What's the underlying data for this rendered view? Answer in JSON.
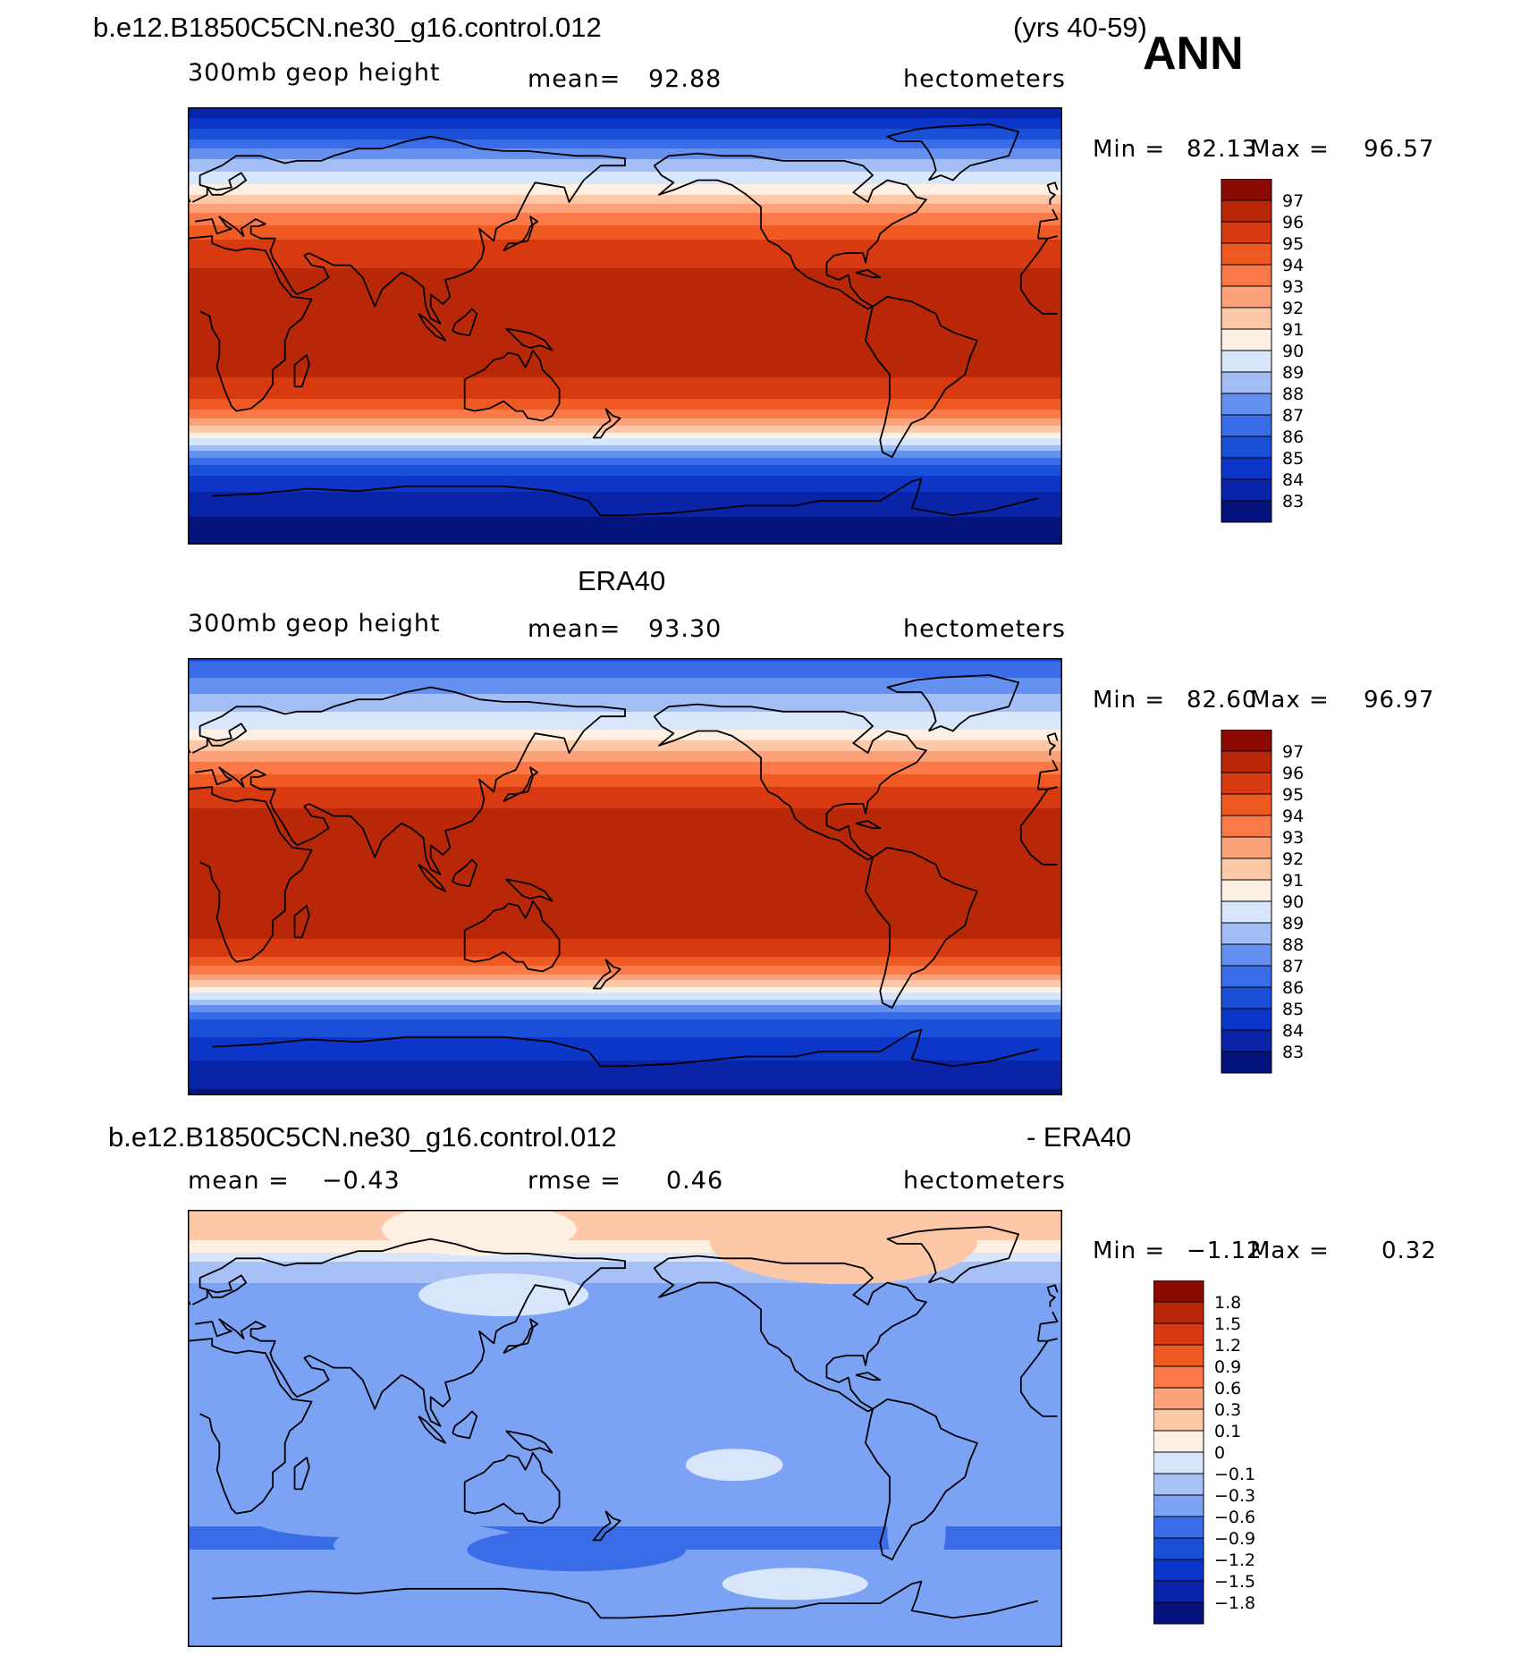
{
  "header": {
    "case_name": "b.e12.B1850C5CN.ne30_g16.control.012",
    "years": "(yrs 40-59)",
    "season": "ANN"
  },
  "colors": {
    "abs_palette": [
      "#05137c",
      "#0a24a8",
      "#0c36c8",
      "#1a4fd8",
      "#3a6ce8",
      "#6490f0",
      "#a3bef5",
      "#d8e6fb",
      "#fdf0e2",
      "#fcc8a8",
      "#fba27a",
      "#f97a48",
      "#ee5a22",
      "#d73a10",
      "#b82808",
      "#8c0a04"
    ],
    "diff_palette": [
      "#05137c",
      "#0a24a8",
      "#0c36c8",
      "#1a4fd8",
      "#3a6ce8",
      "#7ca2f4",
      "#a7c0f6",
      "#d8e6fb",
      "#fdf0e2",
      "#fcc8a8",
      "#fba27a",
      "#f97a48",
      "#ee5a22",
      "#d73a10",
      "#b82808",
      "#8c0a04"
    ],
    "coast": "#000000"
  },
  "chart_data": [
    {
      "type": "heatmap",
      "panel": "model",
      "title": "b.e12.B1850C5CN.ne30_g16.control.012",
      "variable": "300mb geop height",
      "mean_label": "mean=",
      "mean": "92.88",
      "units": "hectometers",
      "min_label": "Min =",
      "min": "82.13",
      "max_label": "Max =",
      "max": "96.57",
      "colorbar_levels": [
        "97",
        "96",
        "95",
        "94",
        "93",
        "92",
        "91",
        "90",
        "89",
        "88",
        "87",
        "86",
        "85",
        "84",
        "83"
      ],
      "lat_profile": {
        "lat": [
          90,
          80,
          70,
          60,
          55,
          50,
          45,
          40,
          35,
          30,
          20,
          10,
          0,
          -10,
          -20,
          -30,
          -35,
          -40,
          -45,
          -50,
          -55,
          -60,
          -70,
          -80,
          -90
        ],
        "value": [
          83.0,
          85.2,
          87.8,
          89.6,
          90.8,
          92.1,
          93.3,
          94.3,
          95.1,
          95.7,
          96.2,
          96.4,
          96.5,
          96.4,
          96.1,
          95.0,
          93.9,
          92.3,
          90.6,
          88.6,
          86.8,
          85.2,
          83.8,
          82.9,
          82.2
        ]
      }
    },
    {
      "type": "heatmap",
      "panel": "obs",
      "title": "ERA40",
      "variable": "300mb geop height",
      "mean_label": "mean=",
      "mean": "93.30",
      "units": "hectometers",
      "min_label": "Min =",
      "min": "82.60",
      "max_label": "Max =",
      "max": "96.97",
      "colorbar_levels": [
        "97",
        "96",
        "95",
        "94",
        "93",
        "92",
        "91",
        "90",
        "89",
        "88",
        "87",
        "86",
        "85",
        "84",
        "83"
      ],
      "lat_profile": {
        "lat": [
          90,
          80,
          70,
          60,
          55,
          50,
          45,
          40,
          35,
          30,
          20,
          10,
          0,
          -10,
          -20,
          -30,
          -35,
          -40,
          -45,
          -50,
          -55,
          -60,
          -70,
          -80,
          -90
        ],
        "value": [
          85.8,
          87.3,
          88.7,
          90.1,
          91.2,
          92.4,
          93.5,
          94.5,
          95.3,
          95.9,
          96.5,
          96.8,
          96.9,
          96.8,
          96.5,
          95.6,
          94.6,
          93.0,
          91.2,
          89.1,
          87.2,
          85.7,
          84.5,
          83.6,
          82.8
        ]
      }
    },
    {
      "type": "heatmap",
      "panel": "difference",
      "title": "b.e12.B1850C5CN.ne30_g16.control.012",
      "title_suffix": "- ERA40",
      "mean_label": "mean =",
      "mean": "−0.43",
      "rmse_label": "rmse =",
      "rmse": "0.46",
      "units": "hectometers",
      "min_label": "Min =",
      "min": "−1.12",
      "max_label": "Max =",
      "max": "0.32",
      "colorbar_levels": [
        "1.8",
        "1.5",
        "1.2",
        "0.9",
        "0.6",
        "0.3",
        "0.1",
        "0",
        "−0.1",
        "−0.3",
        "−0.6",
        "−0.9",
        "−1.2",
        "−1.5",
        "−1.8"
      ],
      "lat_profile": {
        "lat": [
          90,
          80,
          75,
          70,
          65,
          60,
          50,
          40,
          30,
          20,
          10,
          0,
          -10,
          -20,
          -30,
          -40,
          -45,
          -50,
          -55,
          -60,
          -65,
          -70,
          -80,
          -90
        ],
        "value": [
          0.2,
          0.15,
          0.05,
          -0.05,
          -0.2,
          -0.3,
          -0.4,
          -0.45,
          -0.45,
          -0.4,
          -0.35,
          -0.35,
          -0.4,
          -0.45,
          -0.5,
          -0.6,
          -0.65,
          -0.6,
          -0.5,
          -0.3,
          -0.45,
          -0.55,
          -0.5,
          -0.45
        ]
      }
    }
  ]
}
